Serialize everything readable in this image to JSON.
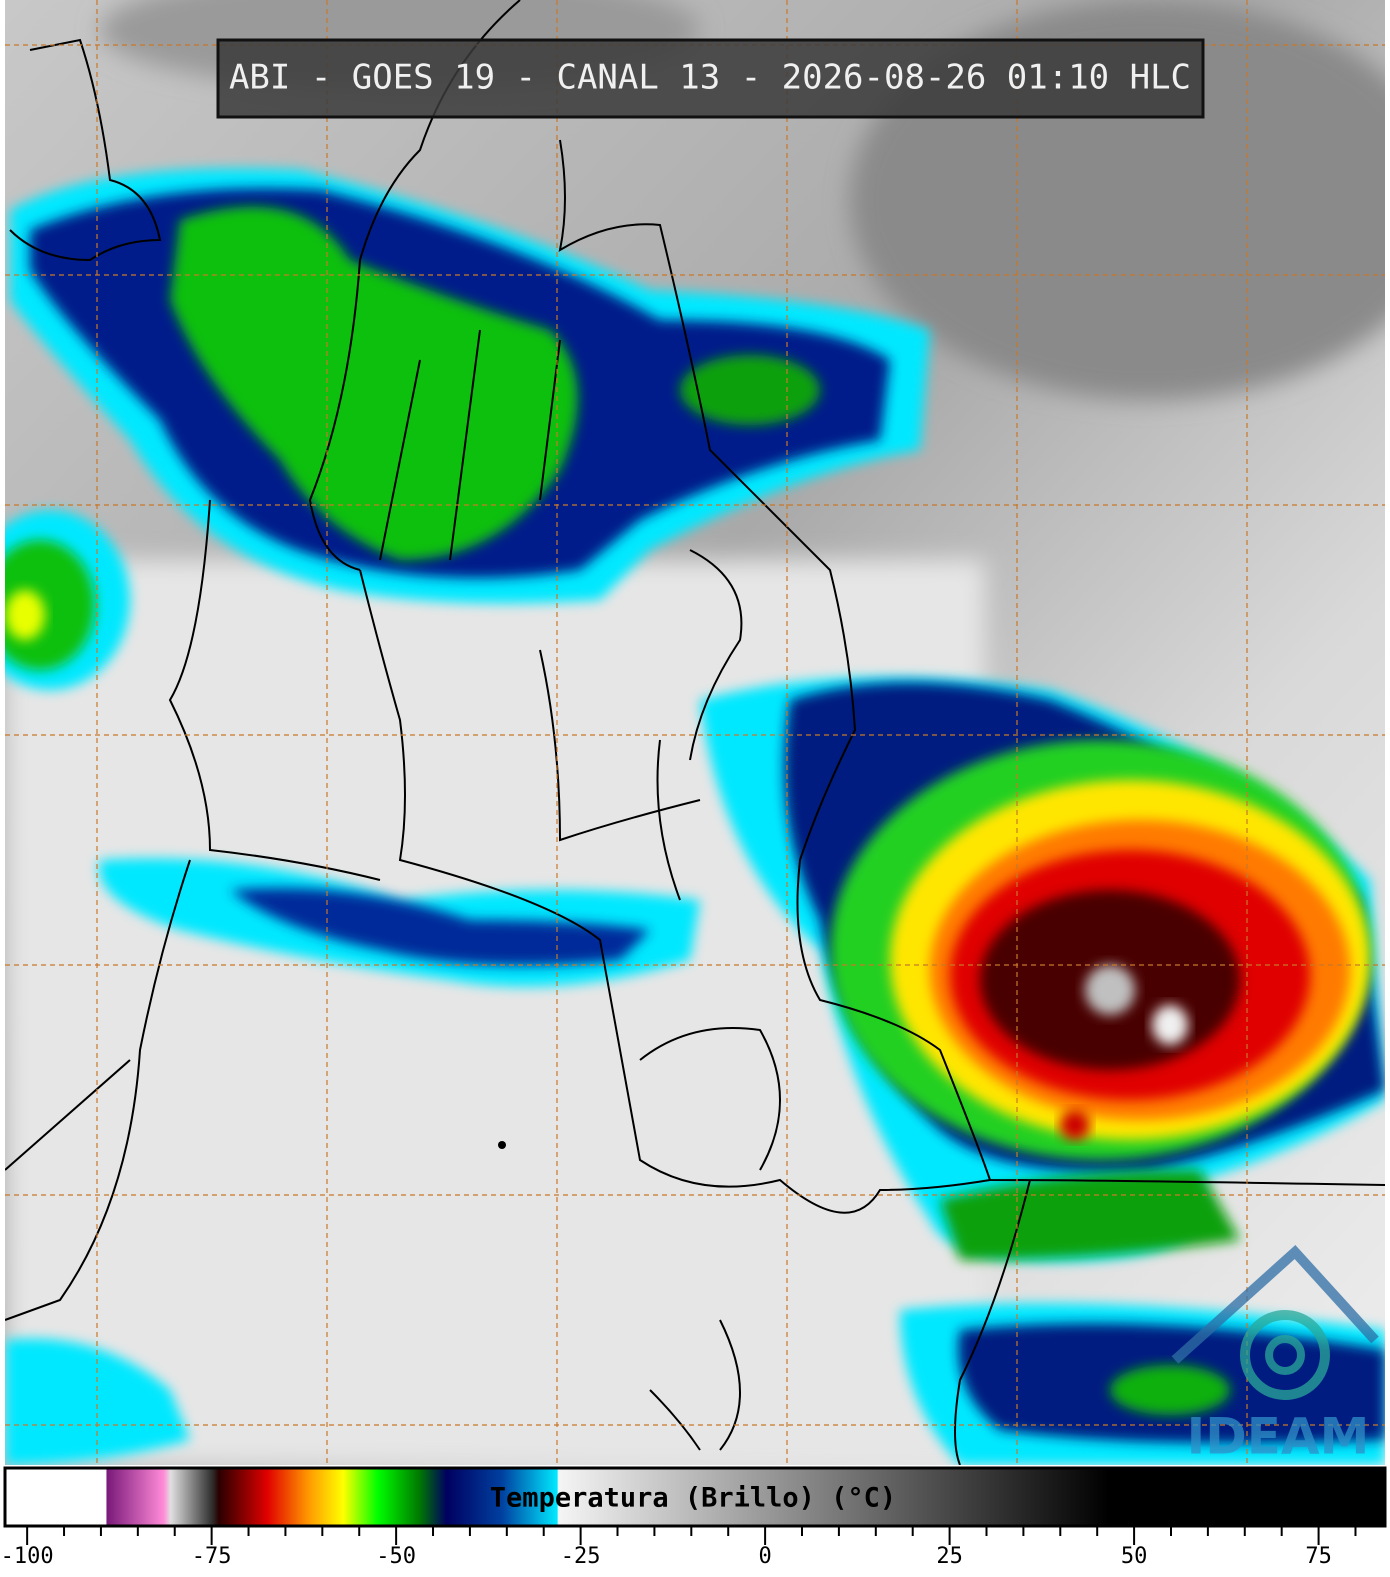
{
  "title": "ABI - GOES 19 - CANAL 13 - 2026-08-26 01:10 HLC",
  "logo": "IDEAM",
  "colorbar": {
    "label": "Temperatura (Brillo) (°C)",
    "range": [
      -103,
      84
    ],
    "ticks": [
      -100,
      -75,
      -50,
      -25,
      0,
      25,
      50,
      75
    ],
    "minor_ticks": [
      -95,
      -90,
      -85,
      -80,
      -70,
      -65,
      -60,
      -55,
      -45,
      -40,
      -35,
      -30,
      -20,
      -15,
      -10,
      -5,
      5,
      10,
      15,
      20,
      30,
      35,
      40,
      45,
      55,
      60,
      65,
      70,
      80
    ]
  }
}
